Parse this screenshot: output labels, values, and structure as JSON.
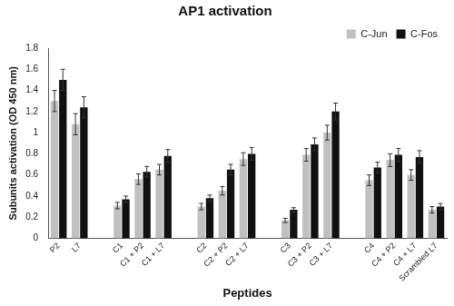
{
  "chart_data": {
    "type": "bar",
    "title": "AP1 activation",
    "x_label": "Peptides",
    "y_label": "Subunits activation (OD 450 nm)",
    "categories": [
      "P2",
      "L7",
      null,
      "C1",
      "C1 + P2",
      "C1 + L7",
      null,
      "C2",
      "C2 + P2",
      "C2 + L7",
      null,
      "C3",
      "C3 + P2",
      "C3 + L7",
      null,
      "C4",
      "C4 + P2",
      "C4 + L7",
      "Scrambled L7"
    ],
    "series": [
      {
        "name": "C-Jun",
        "color": "#c0c0c0",
        "values": [
          1.3,
          1.08,
          null,
          0.31,
          0.56,
          0.65,
          null,
          0.3,
          0.45,
          0.75,
          null,
          0.17,
          0.79,
          1.0,
          null,
          0.55,
          0.74,
          0.6,
          0.27
        ],
        "errors": [
          0.1,
          0.1,
          null,
          0.03,
          0.05,
          0.05,
          null,
          0.03,
          0.04,
          0.06,
          null,
          0.02,
          0.06,
          0.07,
          null,
          0.05,
          0.06,
          0.05,
          0.03
        ]
      },
      {
        "name": "C-Fos",
        "color": "#111111",
        "values": [
          1.5,
          1.24,
          null,
          0.37,
          0.63,
          0.78,
          null,
          0.38,
          0.65,
          0.8,
          null,
          0.27,
          0.89,
          1.2,
          null,
          0.67,
          0.79,
          0.77,
          0.3
        ],
        "errors": [
          0.1,
          0.1,
          null,
          0.03,
          0.05,
          0.06,
          null,
          0.03,
          0.05,
          0.06,
          null,
          0.02,
          0.06,
          0.08,
          null,
          0.05,
          0.06,
          0.06,
          0.03
        ]
      }
    ],
    "ylim": [
      0,
      1.8
    ],
    "yticks": [
      0,
      0.2,
      0.4,
      0.6,
      0.8,
      1,
      1.2,
      1.4,
      1.6,
      1.8
    ],
    "grid": false,
    "legend": "top-right"
  }
}
